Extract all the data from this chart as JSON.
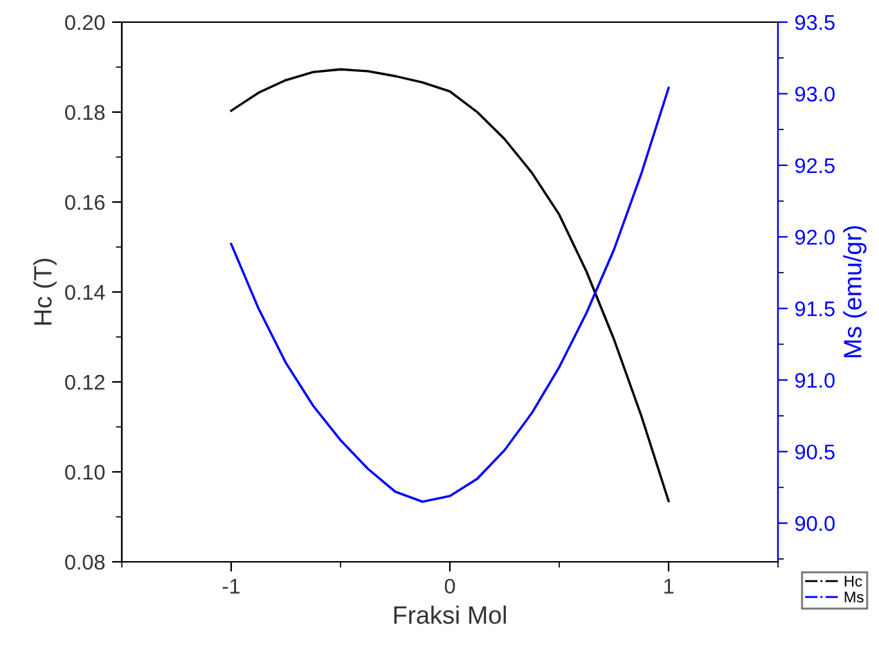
{
  "chart_data": {
    "type": "line",
    "xlabel": "Fraksi Mol",
    "ylabel": "Hc (T)",
    "y2label": "Ms (emu/gr)",
    "x": [
      -1,
      -0.875,
      -0.75,
      -0.625,
      -0.5,
      -0.375,
      -0.25,
      -0.125,
      0,
      0.125,
      0.25,
      0.375,
      0.5,
      0.625,
      0.75,
      0.875,
      1
    ],
    "series": [
      {
        "name": "Hc",
        "color": "#000000",
        "values": [
          0.1803,
          0.1843,
          0.1871,
          0.1889,
          0.1895,
          0.1891,
          0.188,
          0.1866,
          0.1846,
          0.18,
          0.174,
          0.1665,
          0.1572,
          0.1445,
          0.1295,
          0.1125,
          0.0935
        ]
      },
      {
        "name": "Ms",
        "color": "#0000ff",
        "axis": "y2",
        "values": [
          91.95,
          91.5,
          91.12,
          90.82,
          90.58,
          90.38,
          90.22,
          90.15,
          90.19,
          90.31,
          90.51,
          90.77,
          91.09,
          91.47,
          91.91,
          92.44,
          93.04
        ]
      }
    ],
    "xlim": [
      -1.5,
      1.5
    ],
    "xticks": [
      -1,
      0,
      1
    ],
    "ylim": [
      0.08,
      0.2
    ],
    "yticks": [
      {
        "value": 0.08,
        "label": "0.08"
      },
      {
        "value": 0.1,
        "label": "0.10"
      },
      {
        "value": 0.12,
        "label": "0.12"
      },
      {
        "value": 0.14,
        "label": "0.14"
      },
      {
        "value": 0.16,
        "label": "0.16"
      },
      {
        "value": 0.18,
        "label": "0.18"
      },
      {
        "value": 0.2,
        "label": "0.20"
      }
    ],
    "y2lim": [
      89.73,
      93.5
    ],
    "y2ticks": [
      {
        "value": 90,
        "label": "90.0"
      },
      {
        "value": 90.5,
        "label": "90.5"
      },
      {
        "value": 91,
        "label": "91.0"
      },
      {
        "value": 91.5,
        "label": "91.5"
      },
      {
        "value": 92,
        "label": "92.0"
      },
      {
        "value": 92.5,
        "label": "92.5"
      },
      {
        "value": 93,
        "label": "93.0"
      },
      {
        "value": 93.5,
        "label": "93.5"
      }
    ],
    "grid": false,
    "legend": "bottom right",
    "line_style": "solid",
    "marker": "none"
  }
}
